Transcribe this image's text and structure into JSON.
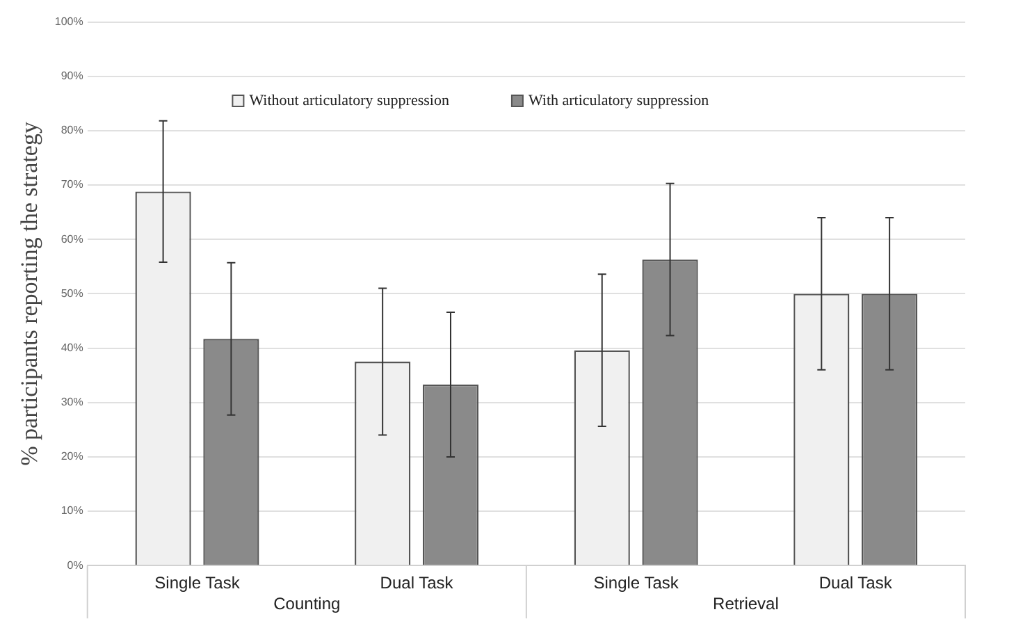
{
  "chart_data": {
    "type": "bar",
    "ylabel": "% participants reporting the strategy",
    "categories": [
      "Single Task",
      "Dual Task",
      "Single Task",
      "Dual Task"
    ],
    "series": [
      {
        "name": "Without articulatory suppression",
        "color": "#f0f0f0",
        "values": [
          68.8,
          37.5,
          39.6,
          50
        ],
        "errors": [
          13,
          13.5,
          14,
          14
        ]
      },
      {
        "name": "With articulatory suppression",
        "color": "#8a8a8a",
        "values": [
          41.7,
          33.3,
          56.3,
          50
        ],
        "errors": [
          14,
          13.3,
          14,
          14
        ]
      }
    ],
    "ylim": [
      0,
      100
    ],
    "yticks": [
      {
        "value": 0,
        "label": "0%"
      },
      {
        "value": 10,
        "label": "10%"
      },
      {
        "value": 20,
        "label": "20%"
      },
      {
        "value": 30,
        "label": "30%"
      },
      {
        "value": 40,
        "label": "40%"
      },
      {
        "value": 50,
        "label": "50%"
      },
      {
        "value": 60,
        "label": "60%"
      },
      {
        "value": 70,
        "label": "70%"
      },
      {
        "value": 80,
        "label": "80%"
      },
      {
        "value": 90,
        "label": "90%"
      },
      {
        "value": 100,
        "label": "100%"
      }
    ],
    "grid": "y",
    "legend": "top",
    "annotations": [
      "Counting",
      "Retrieval"
    ]
  }
}
